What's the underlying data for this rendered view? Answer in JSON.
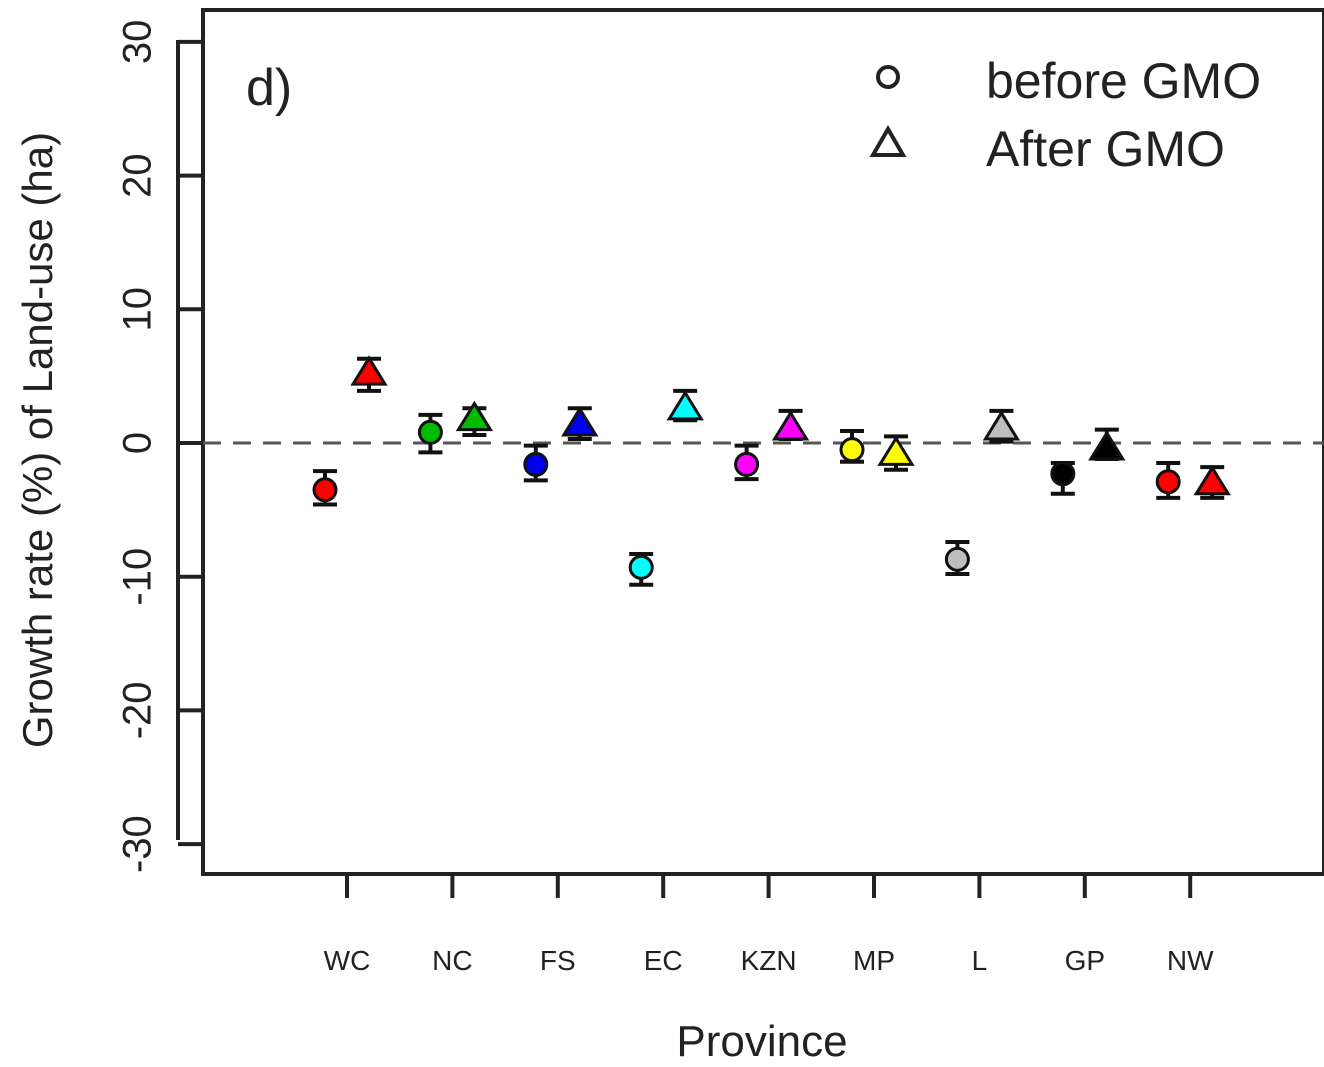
{
  "chart_data": {
    "type": "scatter",
    "panel_label": "d)",
    "xlabel": "Province",
    "ylabel": "Growth rate (%) of Land-use (ha)",
    "ylim": [
      -32,
      33
    ],
    "yticks": [
      -30,
      -20,
      -10,
      0,
      10,
      20,
      30
    ],
    "reference_line": 0,
    "grid": false,
    "legend": {
      "position": "top-right",
      "entries": [
        {
          "label": "before GMO",
          "marker": "open-circle"
        },
        {
          "label": "After GMO",
          "marker": "open-triangle"
        }
      ]
    },
    "categories": [
      "WC",
      "NC",
      "FS",
      "EC",
      "KZN",
      "MP",
      "L",
      "GP",
      "NW"
    ],
    "colors": [
      "#ff0000",
      "#00bb00",
      "#0000ee",
      "#00ffff",
      "#ff00ff",
      "#ffff00",
      "#bebebe",
      "#000000",
      "#ff0000"
    ],
    "series": [
      {
        "name": "before GMO",
        "marker": "circle",
        "values": [
          -3.5,
          0.8,
          -1.6,
          -9.3,
          -1.6,
          -0.5,
          -8.7,
          -2.3,
          -2.9
        ],
        "lower": [
          -4.6,
          -0.7,
          -2.8,
          -10.6,
          -2.7,
          -1.4,
          -9.8,
          -3.8,
          -4.1
        ],
        "upper": [
          -2.1,
          2.1,
          -0.2,
          -8.3,
          -0.2,
          0.9,
          -7.4,
          -1.5,
          -1.5
        ]
      },
      {
        "name": "After GMO",
        "marker": "triangle",
        "values": [
          5.3,
          1.9,
          1.5,
          2.7,
          1.2,
          -0.7,
          1.2,
          -0.3,
          -2.9
        ],
        "lower": [
          3.9,
          0.6,
          0.3,
          1.7,
          0.3,
          -2.0,
          0.1,
          -1.2,
          -4.1
        ],
        "upper": [
          6.3,
          2.6,
          2.6,
          3.9,
          2.4,
          0.5,
          2.4,
          1.0,
          -1.8
        ]
      }
    ]
  }
}
